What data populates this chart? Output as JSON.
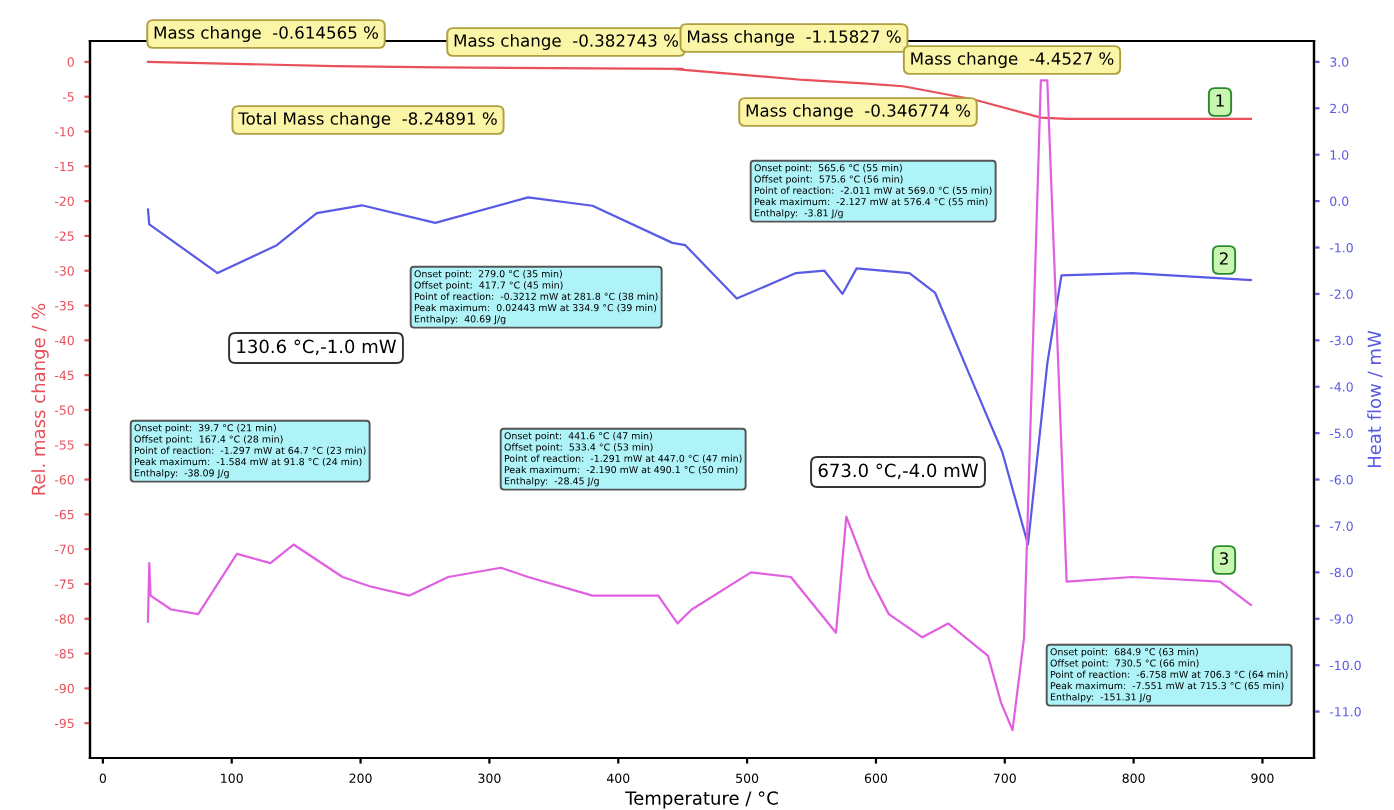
{
  "chart_data": {
    "type": "line",
    "xlabel": "Temperature / °C",
    "ylabel": "Rel. mass change / %",
    "y2label": "Heat flow / mW",
    "xlim": [
      -10,
      940
    ],
    "xticks": [
      0,
      100,
      200,
      300,
      400,
      500,
      600,
      700,
      800,
      900
    ],
    "ylim": [
      -100,
      3
    ],
    "yticks": [
      0,
      -5,
      -10,
      -15,
      -20,
      -25,
      -30,
      -35,
      -40,
      -45,
      -50,
      -55,
      -60,
      -65,
      -70,
      -75,
      -80,
      -85,
      -90,
      -95
    ],
    "y2lim": [
      -12,
      3.45
    ],
    "y2ticks": [
      {
        "value": 3,
        "label": "3.0"
      },
      {
        "value": 2,
        "label": "2.0"
      },
      {
        "value": 1,
        "label": "1.0"
      },
      {
        "value": 0,
        "label": "0.0"
      },
      {
        "value": -1,
        "label": "-1.0"
      },
      {
        "value": -2,
        "label": "-2.0"
      },
      {
        "value": -3,
        "label": "-3.0"
      },
      {
        "value": -4,
        "label": "-4.0"
      },
      {
        "value": -5,
        "label": "-5.0"
      },
      {
        "value": -6,
        "label": "-6.0"
      },
      {
        "value": -7,
        "label": "-7.0"
      },
      {
        "value": -8,
        "label": "-8.0"
      },
      {
        "value": -9,
        "label": "-9.0"
      },
      {
        "value": -10,
        "label": "-10.0"
      },
      {
        "value": -11,
        "label": "-11.0"
      }
    ],
    "grid": false,
    "legend": false,
    "marker": "none",
    "line_style": "solid",
    "series": [
      {
        "color": "#e8505a",
        "x": [
          35,
          180,
          260,
          450,
          442,
          544,
          590,
          621,
          676,
          728,
          748,
          891
        ],
        "values": [
          0,
          -0.6,
          -0.8,
          -1.0,
          -1.0,
          -2.6,
          -3.1,
          -3.5,
          -5.4,
          -8.0,
          -8.2,
          -8.2
        ]
      },
      {
        "color": "#5a5ae6",
        "axis": "y2",
        "x": [
          35,
          36,
          89,
          135,
          166,
          201,
          258,
          330,
          380,
          442,
          452,
          492,
          538,
          560,
          574,
          585,
          626,
          646,
          672,
          698,
          718,
          733,
          744,
          799,
          891
        ],
        "values": [
          -0.18,
          -0.5,
          -1.55,
          -0.95,
          -0.26,
          -0.09,
          -0.47,
          0.08,
          -0.1,
          -0.9,
          -0.95,
          -2.1,
          -1.55,
          -1.5,
          -2.0,
          -1.45,
          -1.55,
          -1.98,
          -3.7,
          -5.4,
          -7.4,
          -3.5,
          -1.6,
          -1.55,
          -1.7
        ]
      },
      {
        "color": "#e060e0",
        "axis": "y2",
        "x": [
          35,
          36,
          37,
          53,
          74,
          104,
          130,
          148,
          186,
          207,
          238,
          268,
          309,
          330,
          380,
          431,
          446,
          457,
          503,
          534,
          569,
          577,
          595,
          610,
          636,
          656,
          687,
          697,
          706,
          715,
          728,
          733,
          748,
          799,
          867,
          891
        ],
        "values": [
          -9.06,
          -7.8,
          -8.5,
          -8.8,
          -8.9,
          -7.6,
          -7.8,
          -7.4,
          -8.1,
          -8.3,
          -8.5,
          -8.1,
          -7.9,
          -8.1,
          -8.5,
          -8.5,
          -9.1,
          -8.8,
          -8.0,
          -8.1,
          -9.3,
          -6.8,
          -8.1,
          -8.9,
          -9.4,
          -9.1,
          -9.8,
          -10.8,
          -11.4,
          -9.4,
          2.6,
          2.6,
          -8.2,
          -8.1,
          -8.2,
          -8.7
        ]
      }
    ],
    "annotations": [
      "Mass change  -0.614565 %",
      "Mass change  -0.382743 %",
      "Mass change  -1.15827 %",
      "Mass change  -4.4527 %",
      "Mass change  -0.346774 %",
      "Total Mass change  -8.24891 %",
      "130.6 °C,-1.0 mW",
      "673.0 °C,-4.0 mW",
      "Onset point:  39.7 °C (21 min)\nOffset point:  167.4 °C (28 min)\nPoint of reaction:  -1.297 mW at 64.7 °C (23 min)\nPeak maximum:  -1.584 mW at 91.8 °C (24 min)\nEnthalpy:  -38.09 J/g",
      "Onset point:  279.0 °C (35 min)\nOffset point:  417.7 °C (45 min)\nPoint of reaction:  -0.3212 mW at 281.8 °C (38 min)\nPeak maximum:  0.02443 mW at 334.9 °C (39 min)\nEnthalpy:  40.69 J/g",
      "Onset point:  441.6 °C (47 min)\nOffset point:  533.4 °C (53 min)\nPoint of reaction:  -1.291 mW at 447.0 °C (47 min)\nPeak maximum:  -2.190 mW at 490.1 °C (50 min)\nEnthalpy:  -28.45 J/g",
      "Onset point:  565.6 °C (55 min)\nOffset point:  575.6 °C (56 min)\nPoint of reaction:  -2.011 mW at 569.0 °C (55 min)\nPeak maximum:  -2.127 mW at 576.4 °C (55 min)\nEnthalpy:  -3.81 J/g",
      "Onset point:  684.9 °C (63 min)\nOffset point:  730.5 °C (66 min)\nPoint of reaction:  -6.758 mW at 706.3 °C (64 min)\nPeak maximum:  -7.551 mW at 715.3 °C (65 min)\nEnthalpy:  -151.31 J/g",
      "1",
      "2",
      "3"
    ]
  }
}
